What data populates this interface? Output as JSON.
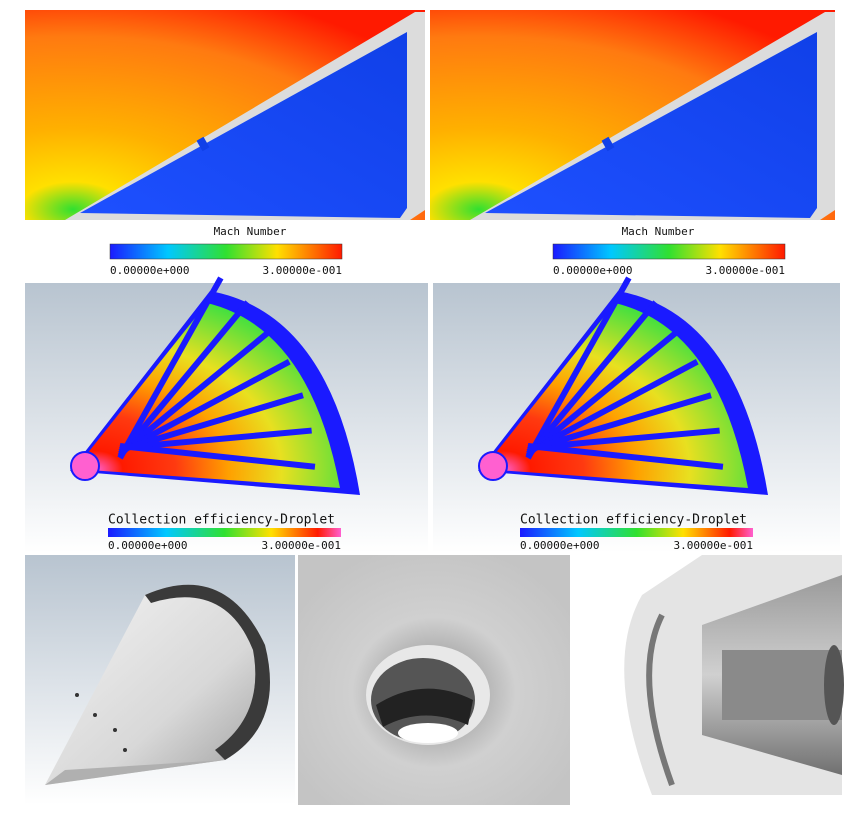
{
  "mach_panels": [
    {
      "title": "Mach Number",
      "min_label": "0.00000e+000",
      "max_label": "3.00000e-001"
    },
    {
      "title": "Mach Number",
      "min_label": "0.00000e+000",
      "max_label": "3.00000e-001"
    }
  ],
  "droplet_panels": [
    {
      "title": "Collection efficiency-Droplet",
      "min_label": "0.00000e+000",
      "max_label": "3.00000e-001"
    },
    {
      "title": "Collection efficiency-Droplet",
      "min_label": "0.00000e+000",
      "max_label": "3.00000e-001"
    }
  ]
}
